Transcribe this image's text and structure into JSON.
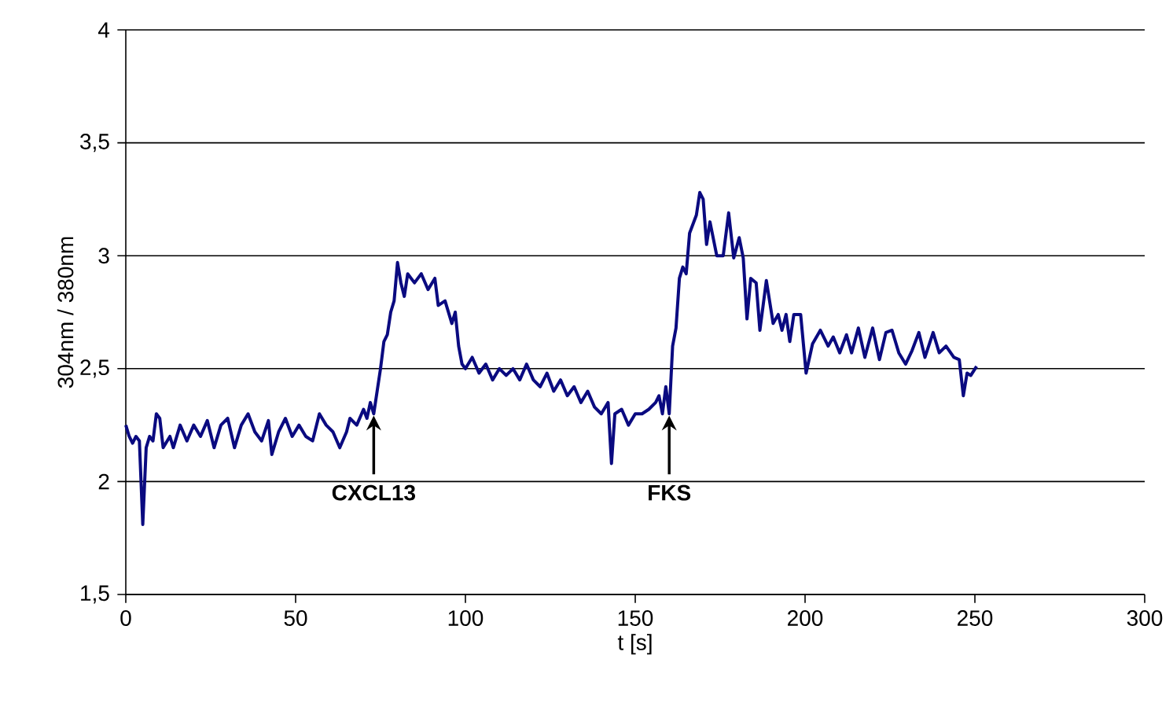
{
  "chart_data": {
    "type": "line",
    "xlabel": "t [s]",
    "ylabel": "304nm / 380nm",
    "xlim": [
      0,
      300
    ],
    "xticks": [
      0,
      50,
      100,
      150,
      200,
      250,
      300
    ],
    "ylim": [
      1.5,
      4
    ],
    "yticks": [
      {
        "value": 1.5,
        "label": "1,5"
      },
      2,
      {
        "value": 2.5,
        "label": "2,5"
      },
      3,
      {
        "value": 3.5,
        "label": "3,5"
      },
      4
    ],
    "grid": "y",
    "legend": false,
    "marker": "none",
    "line_style": "solid",
    "annotations": [
      {
        "text": "CXCL13",
        "x": 73,
        "y": 2.3
      },
      {
        "text": "FKS",
        "x": 160,
        "y": 2.3
      }
    ],
    "series": [
      {
        "color": "#0a0a80",
        "x": [
          0,
          1,
          2,
          3,
          4,
          5,
          6,
          7,
          8,
          9,
          10,
          11,
          13,
          14,
          16,
          18,
          20,
          22,
          24,
          26,
          28,
          30,
          32,
          34,
          36,
          38,
          40,
          42,
          43,
          45,
          47,
          49,
          51,
          53,
          55,
          57,
          59,
          61,
          63,
          65,
          66,
          68,
          70,
          71,
          72,
          73,
          74,
          75,
          76,
          77,
          78,
          79,
          80,
          81,
          82,
          83,
          85,
          87,
          89,
          91,
          92,
          94,
          96,
          97,
          98,
          99,
          100,
          102,
          104,
          106,
          108,
          110,
          112,
          114,
          116,
          118,
          120,
          122,
          124,
          126,
          128,
          130,
          132,
          134,
          136,
          138,
          140,
          142,
          143,
          144,
          146,
          148,
          150,
          152,
          154,
          156,
          157,
          158,
          159,
          160,
          161,
          162,
          163,
          164,
          165,
          166,
          168,
          169,
          170,
          171,
          172,
          174,
          175.9,
          177.5,
          179,
          180.6,
          181.8,
          182.9,
          184,
          185.6,
          186.7,
          188.6,
          190.6,
          192.1,
          193.2,
          194.4,
          195.5,
          196.7,
          198.7,
          200.3,
          202.2,
          204.5,
          206.8,
          208.3,
          210.2,
          212.2,
          213.7,
          215.7,
          217.6,
          219.9,
          221.9,
          223.8,
          225.6,
          227.6,
          229.6,
          231.5,
          233.5,
          235.3,
          237.7,
          239.5,
          241.5,
          243.8,
          245.4,
          246.6,
          247.7,
          248.8,
          250.5
        ],
        "values": [
          2.25,
          2.2,
          2.17,
          2.2,
          2.18,
          1.81,
          2.15,
          2.2,
          2.18,
          2.3,
          2.28,
          2.15,
          2.2,
          2.15,
          2.25,
          2.18,
          2.25,
          2.2,
          2.27,
          2.15,
          2.25,
          2.28,
          2.15,
          2.25,
          2.3,
          2.22,
          2.18,
          2.27,
          2.12,
          2.22,
          2.28,
          2.2,
          2.25,
          2.2,
          2.18,
          2.3,
          2.25,
          2.22,
          2.15,
          2.22,
          2.28,
          2.25,
          2.32,
          2.28,
          2.35,
          2.3,
          2.4,
          2.5,
          2.62,
          2.65,
          2.75,
          2.8,
          2.97,
          2.88,
          2.82,
          2.92,
          2.88,
          2.92,
          2.85,
          2.9,
          2.78,
          2.8,
          2.7,
          2.75,
          2.6,
          2.52,
          2.5,
          2.55,
          2.48,
          2.52,
          2.45,
          2.5,
          2.47,
          2.5,
          2.45,
          2.52,
          2.45,
          2.42,
          2.48,
          2.4,
          2.45,
          2.38,
          2.42,
          2.35,
          2.4,
          2.33,
          2.3,
          2.35,
          2.08,
          2.3,
          2.32,
          2.25,
          2.3,
          2.3,
          2.32,
          2.35,
          2.38,
          2.3,
          2.42,
          2.3,
          2.6,
          2.68,
          2.9,
          2.95,
          2.92,
          3.1,
          3.18,
          3.28,
          3.25,
          3.05,
          3.15,
          3.0,
          3.0,
          3.19,
          2.99,
          3.08,
          2.99,
          2.72,
          2.9,
          2.88,
          2.67,
          2.89,
          2.7,
          2.74,
          2.67,
          2.74,
          2.62,
          2.74,
          2.74,
          2.48,
          2.61,
          2.67,
          2.6,
          2.64,
          2.57,
          2.65,
          2.57,
          2.68,
          2.55,
          2.68,
          2.54,
          2.66,
          2.67,
          2.57,
          2.52,
          2.58,
          2.66,
          2.55,
          2.66,
          2.57,
          2.6,
          2.55,
          2.54,
          2.38,
          2.48,
          2.47,
          2.51
        ]
      }
    ]
  }
}
